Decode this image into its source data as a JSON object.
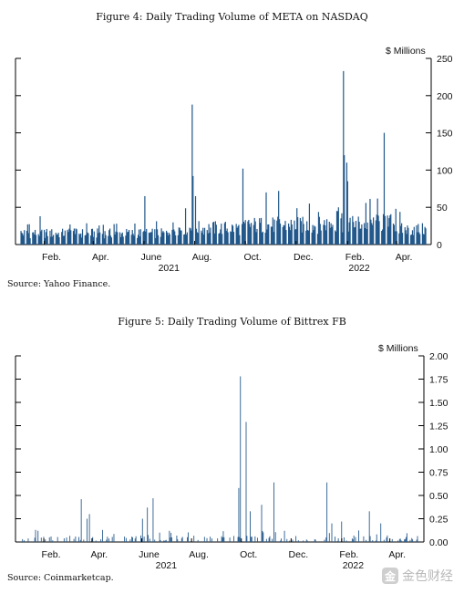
{
  "figures": [
    {
      "title": "Figure 4: Daily Trading Volume of META on NASDAQ",
      "source": "Source: Yahoo Finance."
    },
    {
      "title": "Figure 5: Daily Trading Volume of Bittrex FB",
      "source": "Source: Coinmarketcap."
    }
  ],
  "watermark": {
    "text": "金色财经",
    "icon": "golden-logo-icon"
  },
  "colors": {
    "meta": "#21578a",
    "bittrex": "#2a5d8f"
  },
  "chart_data": [
    {
      "type": "bar",
      "title": "Figure 4: Daily Trading Volume of META on NASDAQ",
      "ylabel": "$ Millions",
      "ylim": [
        0,
        250
      ],
      "yticks": [
        "0",
        "50",
        "100",
        "150",
        "200",
        "250"
      ],
      "xticks": [
        "Feb.",
        "Apr.",
        "June",
        "Aug.",
        "Oct.",
        "Dec.",
        "Feb.",
        "Apr."
      ],
      "year_labels": [
        "2021",
        "2022"
      ],
      "x_range": [
        "2021-01-04",
        "2022-05-06"
      ],
      "spikes": [
        {
          "date": "2021-01-27",
          "value": 38
        },
        {
          "date": "2021-04-29",
          "value": 28
        },
        {
          "date": "2021-06-02",
          "value": 65
        },
        {
          "date": "2021-07-29",
          "value": 188
        },
        {
          "date": "2021-07-30",
          "value": 92
        },
        {
          "date": "2021-08-02",
          "value": 65
        },
        {
          "date": "2021-09-28",
          "value": 102
        },
        {
          "date": "2021-10-26",
          "value": 70
        },
        {
          "date": "2021-11-10",
          "value": 72
        },
        {
          "date": "2021-12-17",
          "value": 55
        },
        {
          "date": "2022-01-27",
          "value": 233
        },
        {
          "date": "2022-01-28",
          "value": 120
        },
        {
          "date": "2022-01-31",
          "value": 110
        },
        {
          "date": "2022-02-01",
          "value": 85
        },
        {
          "date": "2022-03-17",
          "value": 150
        },
        {
          "date": "2022-03-31",
          "value": 48
        }
      ],
      "baseline": {
        "2021-01": 15,
        "2021-04": 14,
        "2021-07": 22,
        "2021-10": 28,
        "2022-01": 30,
        "2022-04": 20
      }
    },
    {
      "type": "bar",
      "title": "Figure 5: Daily Trading Volume of Bittrex FB",
      "ylabel": "$ Millions",
      "ylim": [
        0,
        2.0
      ],
      "yticks": [
        "0.00",
        "0.25",
        "0.50",
        "0.75",
        "1.00",
        "1.25",
        "1.50",
        "1.75",
        "2.00"
      ],
      "xticks": [
        "Feb.",
        "Apr.",
        "June",
        "Aug.",
        "Oct.",
        "Dec.",
        "Feb.",
        "Apr."
      ],
      "year_labels": [
        "2021",
        "2022"
      ],
      "x_range": [
        "2021-01-04",
        "2022-05-06"
      ],
      "spikes": [
        {
          "date": "2021-03-19",
          "value": 0.46
        },
        {
          "date": "2021-03-26",
          "value": 0.25
        },
        {
          "date": "2021-03-29",
          "value": 0.3
        },
        {
          "date": "2021-06-02",
          "value": 0.25
        },
        {
          "date": "2021-06-08",
          "value": 0.37
        },
        {
          "date": "2021-06-15",
          "value": 0.47
        },
        {
          "date": "2021-09-28",
          "value": 0.58
        },
        {
          "date": "2021-09-30",
          "value": 1.78
        },
        {
          "date": "2021-10-07",
          "value": 1.29
        },
        {
          "date": "2021-10-12",
          "value": 0.33
        },
        {
          "date": "2021-10-26",
          "value": 0.4
        },
        {
          "date": "2021-11-10",
          "value": 0.64
        },
        {
          "date": "2022-01-14",
          "value": 0.64
        },
        {
          "date": "2022-01-20",
          "value": 0.2
        },
        {
          "date": "2022-02-01",
          "value": 0.22
        },
        {
          "date": "2022-03-07",
          "value": 0.33
        },
        {
          "date": "2022-03-21",
          "value": 0.2
        }
      ]
    }
  ]
}
